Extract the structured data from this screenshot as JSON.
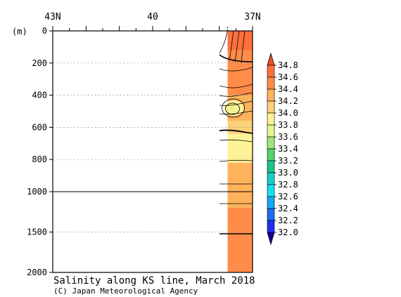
{
  "chart_data": {
    "type": "heatmap",
    "title": "Salinity along KS line, March 2018",
    "credit": "(C) Japan Meteorological Agency",
    "x_axis": {
      "ticks": [
        {
          "value": 43,
          "label": "43N"
        },
        {
          "value": 40,
          "label": "40"
        },
        {
          "value": 37,
          "label": "37N"
        }
      ],
      "minor_tick_step": 0.5,
      "range": [
        43,
        37
      ]
    },
    "y_axis": {
      "unit_label": "(m)",
      "ticks_upper": [
        0,
        200,
        400,
        600,
        800,
        1000
      ],
      "ticks_lower": [
        1500,
        2000
      ],
      "range": [
        0,
        2000
      ],
      "break_depth": 1000
    },
    "data_region": {
      "lat_start": 37.75,
      "lat_end": 37.0
    },
    "colorbar": {
      "levels": [
        "34.8",
        "34.6",
        "34.4",
        "34.2",
        "34.0",
        "33.8",
        "33.6",
        "33.4",
        "33.2",
        "33.0",
        "32.8",
        "32.6",
        "32.4",
        "32.2",
        "32.0"
      ],
      "colors": [
        "#ff6f3c",
        "#ff8c48",
        "#fdb25b",
        "#fdd178",
        "#fef298",
        "#e7f58e",
        "#9fe67a",
        "#56d16b",
        "#1ec487",
        "#18cfc7",
        "#14e2f0",
        "#13a8f2",
        "#1b6df3",
        "#1f2ff2",
        "#1800b8"
      ],
      "top_extend_color": "#f0502a",
      "bottom_extend_color": "#14009a"
    },
    "salinity_layers": [
      {
        "depth_from": 0,
        "depth_to": 120,
        "salinity": 34.7
      },
      {
        "depth_from": 120,
        "depth_to": 280,
        "salinity": 34.5
      },
      {
        "depth_from": 280,
        "depth_to": 400,
        "salinity": 34.4
      },
      {
        "depth_from": 400,
        "depth_to": 560,
        "salinity": 34.2
      },
      {
        "depth_from": 560,
        "depth_to": 640,
        "salinity": 34.05
      },
      {
        "depth_from": 640,
        "depth_to": 820,
        "salinity": 33.95
      },
      {
        "depth_from": 820,
        "depth_to": 1000,
        "salinity": 34.25
      },
      {
        "depth_from": 1000,
        "depth_to": 1200,
        "salinity": 34.35
      },
      {
        "depth_from": 1200,
        "depth_to": 2000,
        "salinity": 34.55
      }
    ],
    "low_salinity_patch": {
      "lat": 37.6,
      "depth": 480,
      "min_salinity": 33.7
    }
  }
}
